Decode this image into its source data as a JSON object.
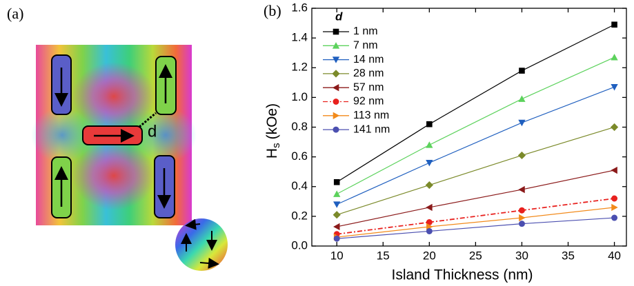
{
  "panel_a": {
    "label": "(a)",
    "gap_label": "d"
  },
  "chart_data": {
    "type": "line",
    "panel_label": "(b)",
    "xlabel": "Island Thickness (nm)",
    "ylabel": {
      "main": "H",
      "sub": "s",
      "unit": "(kOe)"
    },
    "legend_title": "d",
    "legend": "upper-left",
    "x": [
      10,
      20,
      30,
      40
    ],
    "xlim": [
      7.3,
      41.3
    ],
    "xticks": [
      10,
      15,
      20,
      25,
      30,
      35,
      40
    ],
    "ylim": [
      0,
      1.6
    ],
    "yticks": [
      {
        "value": 0,
        "label": "0.0"
      },
      0.2,
      0.4,
      0.6,
      0.8,
      {
        "value": 1,
        "label": "1.0"
      },
      1.2,
      1.4,
      1.6
    ],
    "series": [
      {
        "name": "1 nm",
        "color": "#000000",
        "marker": "square",
        "dash": "solid",
        "values": [
          0.43,
          0.82,
          1.18,
          1.49
        ]
      },
      {
        "name": "7 nm",
        "color": "#5cd25c",
        "marker": "triangle-up",
        "dash": "solid",
        "values": [
          0.35,
          0.68,
          0.99,
          1.27
        ]
      },
      {
        "name": "14 nm",
        "color": "#1f5fbf",
        "marker": "triangle-down",
        "dash": "solid",
        "values": [
          0.28,
          0.56,
          0.83,
          1.07
        ]
      },
      {
        "name": "28 nm",
        "color": "#7b8a2a",
        "marker": "diamond",
        "dash": "solid",
        "values": [
          0.21,
          0.41,
          0.61,
          0.8
        ]
      },
      {
        "name": "57 nm",
        "color": "#8b1a1a",
        "marker": "triangle-left",
        "dash": "solid",
        "values": [
          0.13,
          0.26,
          0.38,
          0.51
        ]
      },
      {
        "name": "92 nm",
        "color": "#e8211e",
        "marker": "circle",
        "dash": "dashdot",
        "values": [
          0.08,
          0.16,
          0.24,
          0.32
        ]
      },
      {
        "name": "113 nm",
        "color": "#f28a1a",
        "marker": "triangle-right",
        "dash": "solid",
        "values": [
          0.06,
          0.13,
          0.19,
          0.26
        ]
      },
      {
        "name": "141 nm",
        "color": "#4b4fb0",
        "marker": "circle",
        "dash": "solid",
        "values": [
          0.05,
          0.1,
          0.15,
          0.19
        ]
      }
    ]
  }
}
